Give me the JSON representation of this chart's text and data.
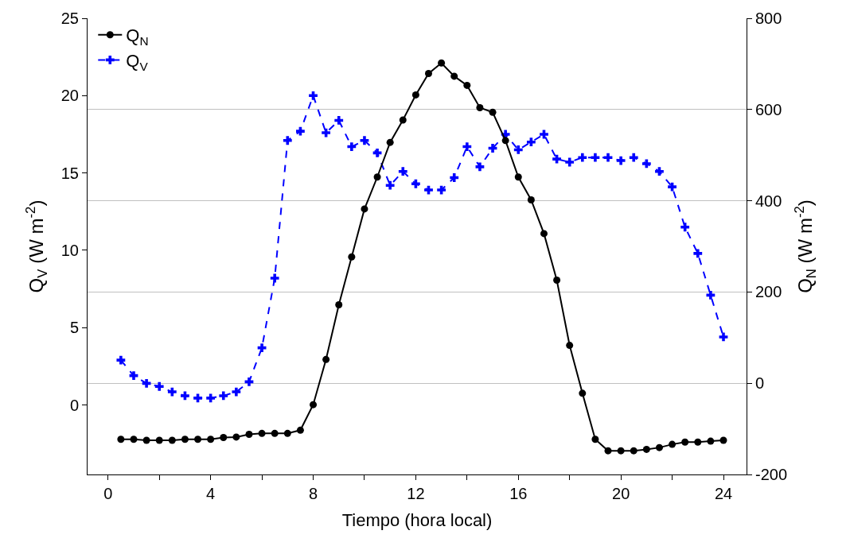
{
  "chart_data": {
    "type": "line",
    "xlabel": "Tiempo (hora local)",
    "ylabel": "Q$_{V}$ (W m$^{-2}$)",
    "y2label": "Q$_{N}$ (W m$^{-2}$)",
    "x": [
      0.5,
      1,
      1.5,
      2,
      2.5,
      3,
      3.5,
      4,
      4.5,
      5,
      5.5,
      6,
      6.5,
      7,
      7.5,
      8,
      8.5,
      9,
      9.5,
      10,
      10.5,
      11,
      11.5,
      12,
      12.5,
      13,
      13.5,
      14,
      14.5,
      15,
      15.5,
      16,
      16.5,
      17,
      17.5,
      18,
      18.5,
      19,
      19.5,
      20,
      20.5,
      21,
      21.5,
      22,
      22.5,
      23,
      23.5,
      24
    ],
    "series": [
      {
        "name": "Q$_{N}$",
        "color": "#000000",
        "axis": "y2",
        "marker": "circle",
        "line_style": "solid",
        "values": [
          -123,
          -123,
          -125,
          -125,
          -125,
          -123,
          -123,
          -123,
          -119,
          -118,
          -112,
          -110,
          -110,
          -110,
          -103,
          -47,
          52,
          172,
          277,
          382,
          452,
          528,
          577,
          632,
          679,
          702,
          673,
          653,
          604,
          594,
          532,
          452,
          402,
          328,
          226,
          83,
          -22,
          -123,
          -148,
          -148,
          -148,
          -145,
          -141,
          -134,
          -129,
          -129,
          -127,
          -125
        ]
      },
      {
        "name": "Q$_{V}$",
        "color": "#0000ff",
        "axis": "y",
        "marker": "cross",
        "line_style": "dashed",
        "values": [
          2.9,
          1.9,
          1.4,
          1.2,
          0.85,
          0.6,
          0.45,
          0.45,
          0.6,
          0.85,
          1.5,
          3.7,
          8.2,
          17.1,
          17.7,
          20.0,
          17.6,
          18.4,
          16.7,
          17.1,
          16.3,
          14.2,
          15.1,
          14.3,
          13.9,
          13.9,
          14.7,
          16.7,
          15.4,
          16.6,
          17.5,
          16.5,
          17.0,
          17.5,
          15.9,
          15.7,
          16.0,
          16.0,
          16.0,
          15.8,
          16.0,
          15.6,
          15.1,
          14.1,
          11.5,
          9.8,
          7.1,
          4.4
        ]
      }
    ],
    "xlim": [
      -0.8,
      24.9
    ],
    "xticks": [
      0,
      {
        "value": 2,
        "label": null
      },
      4,
      {
        "value": 6,
        "label": null
      },
      8,
      {
        "value": 10,
        "label": null
      },
      12,
      {
        "value": 14,
        "label": null
      },
      16,
      {
        "value": 18,
        "label": null
      },
      20,
      {
        "value": 22,
        "label": null
      },
      24
    ],
    "ylim": [
      -4.49,
      25
    ],
    "yticks": [
      0,
      5,
      10,
      15,
      20,
      25
    ],
    "y2lim": [
      -200,
      800
    ],
    "y2ticks": [
      -200,
      0,
      200,
      400,
      600,
      800
    ],
    "grid": "y2",
    "legend": "top left"
  }
}
